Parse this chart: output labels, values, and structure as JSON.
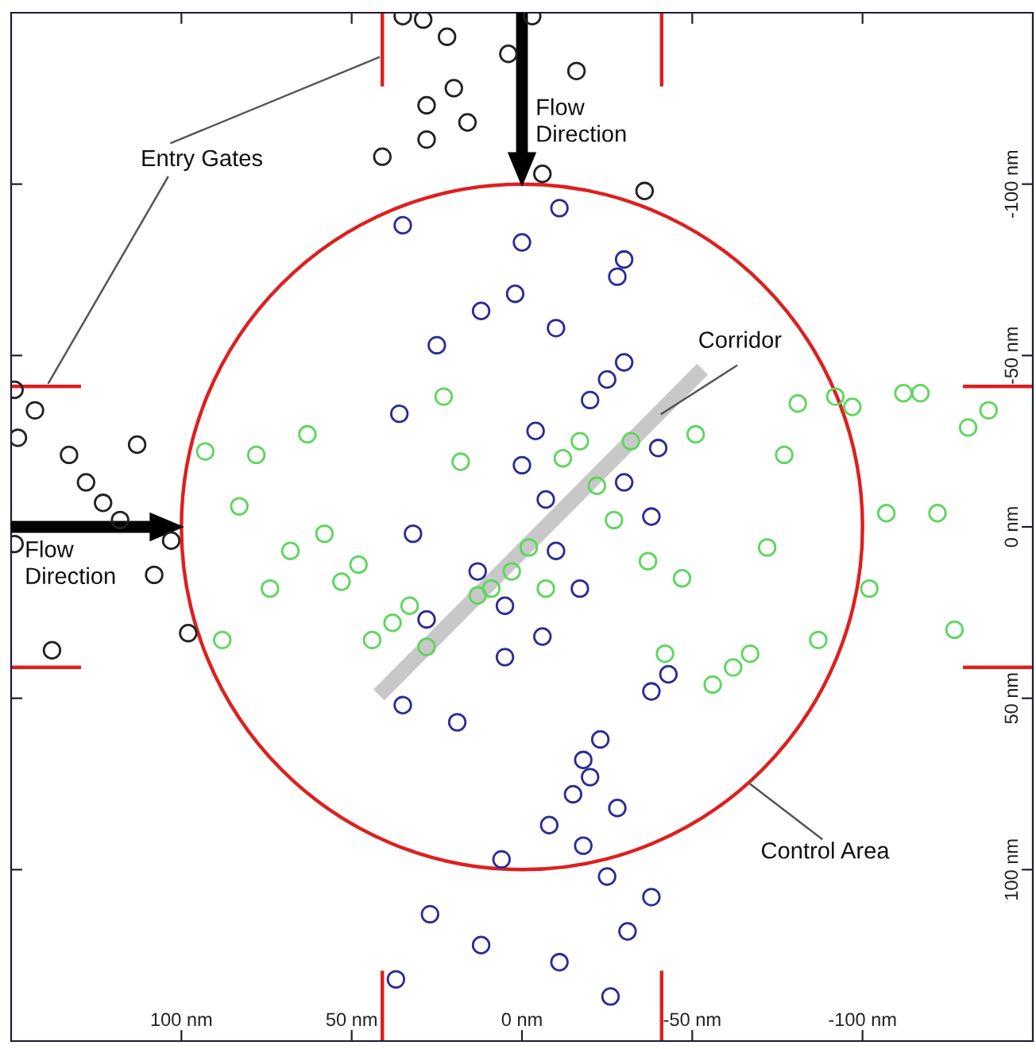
{
  "chart_data": {
    "type": "scatter",
    "xlim": [
      150,
      -150
    ],
    "ylim": [
      150,
      -150
    ],
    "xticks": [
      {
        "value": 100,
        "label": "100 nm"
      },
      {
        "value": 50,
        "label": "50 nm"
      },
      {
        "value": 0,
        "label": "0 nm"
      },
      {
        "value": -50,
        "label": "-50 nm"
      },
      {
        "value": -100,
        "label": "-100 nm"
      }
    ],
    "yticks": [
      {
        "value": -100,
        "label": "-100 nm"
      },
      {
        "value": -50,
        "label": "-50 nm"
      },
      {
        "value": 0,
        "label": "0 nm"
      },
      {
        "value": 50,
        "label": "50 nm"
      },
      {
        "value": 100,
        "label": "100 nm"
      }
    ],
    "grid": false,
    "legend": false,
    "marker": "circle",
    "annotations": [
      "Entry Gates",
      "Flow\nDirection",
      "Flow\nDirection",
      "Corridor",
      "Control Area"
    ],
    "series": [
      {
        "color": "#222222",
        "x": [
          35,
          29,
          22,
          4,
          20,
          28,
          16,
          28,
          41,
          -3,
          -16,
          -6,
          -36,
          149,
          143,
          148,
          133,
          113,
          128,
          123,
          118,
          149,
          103,
          108,
          98,
          138
        ],
        "values": [
          -149,
          -148,
          -143,
          -138,
          -128,
          -123,
          -118,
          -113,
          -108,
          -149,
          -133,
          -103,
          -98,
          -40,
          -34,
          -26,
          -21,
          -24,
          -13,
          -7,
          -2,
          5,
          4,
          14,
          31,
          36
        ]
      },
      {
        "color": "#2b2b96",
        "x": [
          35,
          0,
          2,
          12,
          25,
          36,
          0,
          -11,
          -30,
          -28,
          -10,
          -30,
          -25,
          -20,
          -4,
          -40,
          -30,
          -7,
          -38,
          32,
          13,
          5,
          28,
          5,
          35,
          19,
          6,
          27,
          12,
          37,
          -10,
          -17,
          -6,
          -43,
          -38,
          -23,
          -18,
          -20,
          -15,
          -28,
          -8,
          -18,
          -25,
          -38,
          -31,
          -11,
          -26
        ],
        "values": [
          -88,
          -83,
          -68,
          -63,
          -53,
          -33,
          -18,
          -93,
          -78,
          -73,
          -58,
          -48,
          -43,
          -37,
          -28,
          -23,
          -13,
          -8,
          -3,
          2,
          13,
          23,
          27,
          38,
          52,
          57,
          97,
          113,
          122,
          132,
          7,
          18,
          32,
          43,
          48,
          62,
          68,
          73,
          78,
          82,
          87,
          93,
          102,
          108,
          118,
          127,
          137
        ]
      },
      {
        "color": "#5cd65c",
        "x": [
          23,
          63,
          93,
          78,
          18,
          83,
          -51,
          -81,
          -92,
          -97,
          -112,
          -117,
          -137,
          -131,
          -77,
          -32,
          -17,
          -12,
          -22,
          -27,
          -107,
          -122,
          58,
          68,
          48,
          74,
          53,
          3,
          9,
          13,
          33,
          38,
          44,
          28,
          88,
          -2,
          -72,
          -37,
          -7,
          -47,
          -102,
          -127,
          -87,
          -42,
          -67,
          -62,
          -56
        ],
        "values": [
          -38,
          -27,
          -22,
          -21,
          -19,
          -6,
          -27,
          -36,
          -38,
          -35,
          -39,
          -39,
          -34,
          -29,
          -21,
          -25,
          -25,
          -20,
          -12,
          -2,
          -4,
          -4,
          2,
          7,
          11,
          18,
          16,
          13,
          18,
          20,
          23,
          28,
          33,
          35,
          33,
          6,
          6,
          10,
          18,
          15,
          18,
          30,
          33,
          37,
          37,
          41,
          46
        ]
      }
    ]
  }
}
